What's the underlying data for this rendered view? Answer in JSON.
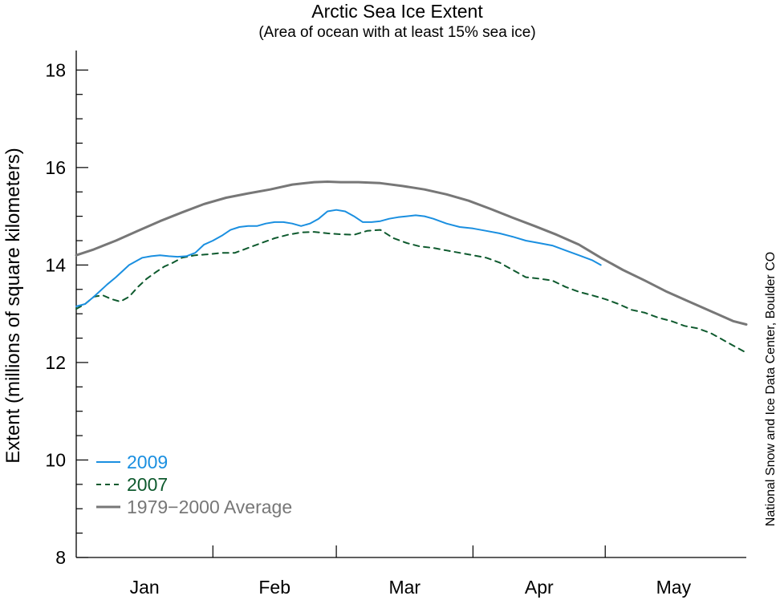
{
  "chart_data": {
    "type": "line",
    "title": "Arctic Sea Ice Extent",
    "subtitle": "(Area of ocean with at least 15% sea ice)",
    "ylabel": "Extent (millions of square kilometers)",
    "xlabel": "",
    "ylim": [
      8,
      18.4
    ],
    "yticks": [
      8,
      10,
      12,
      14,
      16,
      18
    ],
    "x_domain_days": [
      1,
      153
    ],
    "months": [
      {
        "label": "Jan",
        "start": 1,
        "end": 32
      },
      {
        "label": "Feb",
        "start": 32,
        "end": 60
      },
      {
        "label": "Mar",
        "start": 60,
        "end": 91
      },
      {
        "label": "Apr",
        "start": 91,
        "end": 121
      },
      {
        "label": "May",
        "start": 121,
        "end": 152
      }
    ],
    "grid": false,
    "legend_position": "bottom-left",
    "series": [
      {
        "name": "2009",
        "color": "#1a8fe0",
        "dash": "solid",
        "x": [
          1,
          3,
          5,
          8,
          10,
          13,
          16,
          18,
          20,
          22,
          24,
          26,
          28,
          30,
          32,
          34,
          36,
          38,
          40,
          42,
          44,
          46,
          48,
          50,
          52,
          54,
          56,
          58,
          60,
          62,
          64,
          66,
          68,
          70,
          72,
          74,
          76,
          78,
          80,
          82,
          85,
          88,
          91,
          94,
          97,
          100,
          103,
          106,
          109,
          112,
          115,
          118,
          120
        ],
        "y": [
          13.15,
          13.2,
          13.35,
          13.6,
          13.75,
          14.0,
          14.15,
          14.18,
          14.2,
          14.18,
          14.17,
          14.18,
          14.25,
          14.42,
          14.5,
          14.6,
          14.72,
          14.78,
          14.8,
          14.8,
          14.85,
          14.88,
          14.88,
          14.85,
          14.8,
          14.85,
          14.95,
          15.1,
          15.13,
          15.1,
          15.0,
          14.88,
          14.88,
          14.9,
          14.95,
          14.98,
          15.0,
          15.02,
          15.0,
          14.95,
          14.85,
          14.78,
          14.75,
          14.7,
          14.65,
          14.58,
          14.5,
          14.45,
          14.4,
          14.3,
          14.2,
          14.1,
          14.0
        ]
      },
      {
        "name": "2007",
        "color": "#0e5a2e",
        "dash": "dashed",
        "x": [
          1,
          3,
          5,
          7,
          9,
          11,
          13,
          15,
          17,
          19,
          21,
          23,
          25,
          28,
          31,
          34,
          37,
          40,
          43,
          46,
          49,
          52,
          55,
          58,
          61,
          64,
          67,
          70,
          73,
          76,
          79,
          82,
          85,
          88,
          91,
          94,
          97,
          100,
          103,
          106,
          109,
          112,
          115,
          118,
          121,
          124,
          127,
          130,
          133,
          136,
          139,
          142,
          145,
          148,
          150,
          153
        ],
        "y": [
          13.1,
          13.2,
          13.35,
          13.38,
          13.3,
          13.25,
          13.35,
          13.55,
          13.72,
          13.85,
          13.97,
          14.05,
          14.15,
          14.2,
          14.22,
          14.25,
          14.25,
          14.35,
          14.45,
          14.55,
          14.62,
          14.67,
          14.68,
          14.65,
          14.63,
          14.62,
          14.7,
          14.72,
          14.55,
          14.45,
          14.38,
          14.35,
          14.3,
          14.25,
          14.2,
          14.15,
          14.05,
          13.9,
          13.75,
          13.72,
          13.68,
          13.55,
          13.45,
          13.38,
          13.3,
          13.2,
          13.08,
          13.02,
          12.92,
          12.85,
          12.75,
          12.7,
          12.6,
          12.45,
          12.35,
          12.2
        ]
      },
      {
        "name": "1979−2000 Average",
        "color": "#777777",
        "dash": "solid",
        "x": [
          1,
          5,
          10,
          15,
          20,
          25,
          30,
          35,
          40,
          45,
          50,
          55,
          58,
          61,
          65,
          70,
          75,
          80,
          85,
          90,
          95,
          100,
          105,
          110,
          115,
          120,
          125,
          130,
          135,
          140,
          145,
          150,
          153
        ],
        "y": [
          14.2,
          14.32,
          14.5,
          14.7,
          14.9,
          15.08,
          15.25,
          15.38,
          15.47,
          15.55,
          15.65,
          15.7,
          15.71,
          15.7,
          15.7,
          15.68,
          15.62,
          15.55,
          15.45,
          15.32,
          15.15,
          14.97,
          14.8,
          14.62,
          14.42,
          14.15,
          13.9,
          13.68,
          13.45,
          13.25,
          13.05,
          12.85,
          12.78
        ]
      }
    ]
  },
  "credit": "National Snow and Ice Data Center, Boulder CO"
}
